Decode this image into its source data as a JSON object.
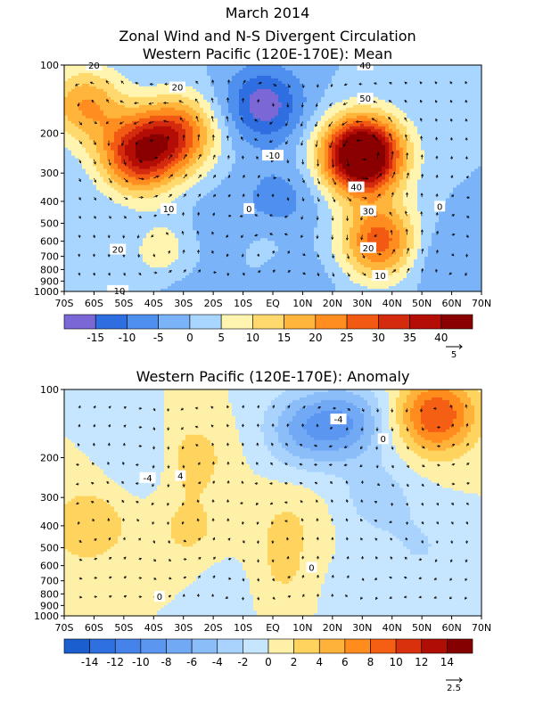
{
  "header": {
    "line1": "March 2014",
    "line2": "Zonal Wind and N-S Divergent Circulation",
    "line3": "Western Pacific (120E-170E): Mean"
  },
  "chart_data": [
    {
      "type": "heatmap",
      "title": "Western Pacific (120E-170E): Mean",
      "y_scale": "log",
      "y_reversed": true,
      "y_ticks": [
        "100",
        "200",
        "300",
        "400",
        "500",
        "600",
        "700",
        "800",
        "900",
        "1000"
      ],
      "x_ticks": [
        "70S",
        "60S",
        "50S",
        "40S",
        "30S",
        "20S",
        "10S",
        "EQ",
        "10N",
        "20N",
        "30N",
        "40N",
        "50N",
        "60N",
        "70N"
      ],
      "colorbar": {
        "labels": [
          "-15",
          "-10",
          "-5",
          "0",
          "5",
          "10",
          "15",
          "20",
          "25",
          "30",
          "35",
          "40"
        ],
        "colors": [
          "#7b68d6",
          "#2f6ee0",
          "#4f90ef",
          "#7ab3f7",
          "#a8d6ff",
          "#fff5b0",
          "#ffd96e",
          "#ffb43b",
          "#ff8d1f",
          "#f25a14",
          "#d42a0e",
          "#b30d05",
          "#8a0000"
        ]
      },
      "contour_labels": [
        {
          "text": "20",
          "x": -60,
          "p": 100
        },
        {
          "text": "20",
          "x": -32,
          "p": 125
        },
        {
          "text": "-10",
          "x": 0,
          "p": 250
        },
        {
          "text": "10",
          "x": -35,
          "p": 430
        },
        {
          "text": "0",
          "x": -8,
          "p": 430
        },
        {
          "text": "20",
          "x": -52,
          "p": 650
        },
        {
          "text": "-10",
          "x": -52,
          "p": 990
        },
        {
          "text": "40",
          "x": 31,
          "p": 100
        },
        {
          "text": "50",
          "x": 31,
          "p": 140
        },
        {
          "text": "40",
          "x": 28,
          "p": 345
        },
        {
          "text": "30",
          "x": 32,
          "p": 440
        },
        {
          "text": "20",
          "x": 32,
          "p": 640
        },
        {
          "text": "10",
          "x": 36,
          "p": 850
        },
        {
          "text": "0",
          "x": 56,
          "p": 420
        }
      ],
      "features": [
        {
          "x": -45,
          "p": 250,
          "value": 34
        },
        {
          "x": -63,
          "p": 150,
          "value": 20
        },
        {
          "x": -32,
          "p": 200,
          "value": 26
        },
        {
          "x": -35,
          "p": 700,
          "value": 10
        },
        {
          "x": -3,
          "p": 150,
          "value": -18
        },
        {
          "x": 2,
          "p": 400,
          "value": -8
        },
        {
          "x": -17,
          "p": 550,
          "value": -6
        },
        {
          "x": -5,
          "p": 600,
          "value": 5
        },
        {
          "x": 30,
          "p": 250,
          "value": 58
        },
        {
          "x": 36,
          "p": 600,
          "value": 28
        },
        {
          "x": 55,
          "p": 700,
          "value": -6
        },
        {
          "x": -30,
          "p": 930,
          "value": -6
        },
        {
          "x": 7,
          "p": 950,
          "value": -5
        }
      ],
      "reference_vector": {
        "label": "5"
      }
    },
    {
      "type": "heatmap",
      "title": "Western Pacific (120E-170E): Anomaly",
      "y_scale": "log",
      "y_reversed": true,
      "y_ticks": [
        "100",
        "200",
        "300",
        "400",
        "500",
        "600",
        "700",
        "800",
        "900",
        "1000"
      ],
      "x_ticks": [
        "70S",
        "60S",
        "50S",
        "40S",
        "30S",
        "20S",
        "10S",
        "EQ",
        "10N",
        "20N",
        "30N",
        "40N",
        "50N",
        "60N",
        "70N"
      ],
      "colorbar": {
        "labels": [
          "-14",
          "-12",
          "-10",
          "-8",
          "-6",
          "-4",
          "-2",
          "0",
          "2",
          "4",
          "6",
          "8",
          "10",
          "12",
          "14"
        ],
        "colors": [
          "#1b5fcf",
          "#2f70e0",
          "#4583ea",
          "#5b96f0",
          "#72a9f5",
          "#8bbdf9",
          "#a9d2fc",
          "#c6e6ff",
          "#fff0a8",
          "#ffd45e",
          "#ffb23a",
          "#ff8c1c",
          "#f55f14",
          "#d9300d",
          "#b00d05",
          "#850000"
        ]
      },
      "contour_labels": [
        {
          "text": "-4",
          "x": 22,
          "p": 135
        },
        {
          "text": "0",
          "x": 37,
          "p": 165
        },
        {
          "text": "-4",
          "x": -42,
          "p": 245
        },
        {
          "text": "4",
          "x": -31,
          "p": 240
        },
        {
          "text": "0",
          "x": 13,
          "p": 610
        },
        {
          "text": "0",
          "x": -38,
          "p": 820
        }
      ],
      "features": [
        {
          "x": -38,
          "p": 200,
          "value": -5
        },
        {
          "x": 10,
          "p": 150,
          "value": -6
        },
        {
          "x": 25,
          "p": 140,
          "value": -7
        },
        {
          "x": -31,
          "p": 200,
          "value": 6
        },
        {
          "x": -28,
          "p": 420,
          "value": 2.5
        },
        {
          "x": -62,
          "p": 400,
          "value": 4
        },
        {
          "x": 55,
          "p": 130,
          "value": 10
        },
        {
          "x": 35,
          "p": 300,
          "value": -3
        },
        {
          "x": 50,
          "p": 500,
          "value": -2
        },
        {
          "x": -12,
          "p": 700,
          "value": -1.5
        },
        {
          "x": 5,
          "p": 380,
          "value": 2
        },
        {
          "x": 2,
          "p": 650,
          "value": 2.5
        },
        {
          "x": 25,
          "p": 750,
          "value": -1
        }
      ],
      "reference_vector": {
        "label": "2.5"
      }
    }
  ]
}
